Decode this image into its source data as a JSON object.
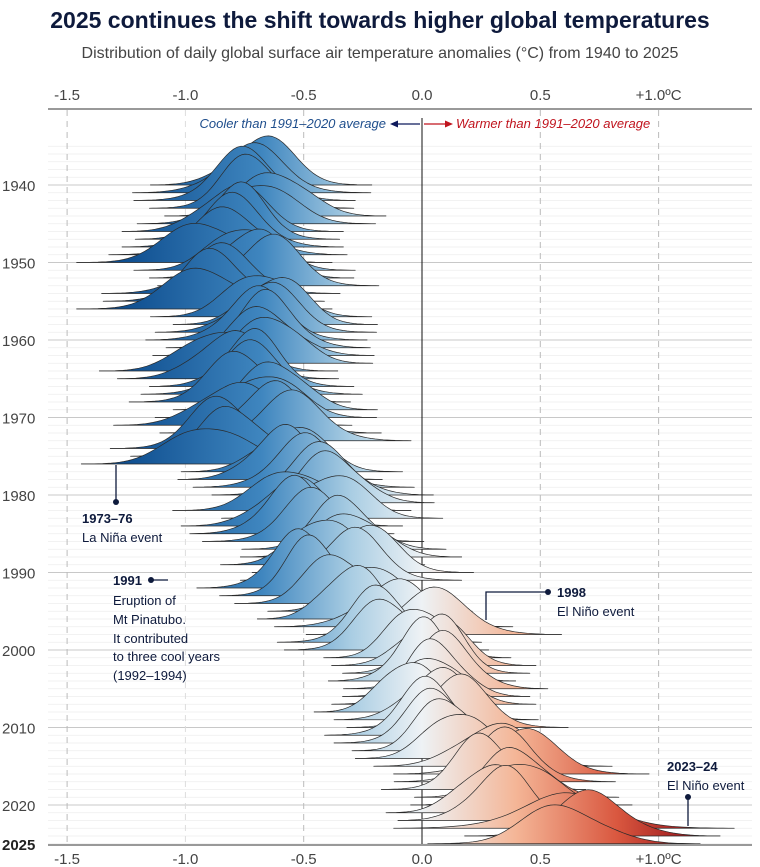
{
  "chart_data": {
    "type": "ridgeline",
    "title": "2025 continues the shift towards higher global temperatures",
    "subtitle": "Distribution of daily global surface air temperature anomalies (°C) from 1940 to 2025",
    "x_ticks": [
      "-1.5",
      "-1.0",
      "-0.5",
      "0.0",
      "0.5",
      "+1.0ºC"
    ],
    "x_tick_values": [
      -1.5,
      -1.0,
      -0.5,
      0.0,
      0.5,
      1.0
    ],
    "xlim": [
      -1.6,
      1.4
    ],
    "y_ticks": [
      "1940",
      "1950",
      "1960",
      "1970",
      "1980",
      "1990",
      "2000",
      "2010",
      "2020",
      "2025"
    ],
    "y_tick_values": [
      1940,
      1950,
      1960,
      1970,
      1980,
      1990,
      2000,
      2010,
      2020,
      2025
    ],
    "years_range": [
      1940,
      2025
    ],
    "direction_labels": {
      "cooler": "Cooler than 1991–2020 average",
      "warmer": "Warmer than 1991–2020 average"
    },
    "colors": {
      "cold": "#0b4a8c",
      "neutral": "#eef2f5",
      "warm": "#9e0b16",
      "cooler_text": "#1f4e8c",
      "warmer_text": "#c0141e"
    },
    "series": {
      "years": [
        1940,
        1941,
        1942,
        1943,
        1944,
        1945,
        1946,
        1947,
        1948,
        1949,
        1950,
        1951,
        1952,
        1953,
        1954,
        1955,
        1956,
        1957,
        1958,
        1959,
        1960,
        1961,
        1962,
        1963,
        1964,
        1965,
        1966,
        1967,
        1968,
        1969,
        1970,
        1971,
        1972,
        1973,
        1974,
        1975,
        1976,
        1977,
        1978,
        1979,
        1980,
        1981,
        1982,
        1983,
        1984,
        1985,
        1986,
        1987,
        1988,
        1989,
        1990,
        1991,
        1992,
        1993,
        1994,
        1995,
        1996,
        1997,
        1998,
        1999,
        2000,
        2001,
        2002,
        2003,
        2004,
        2005,
        2006,
        2007,
        2008,
        2009,
        2010,
        2011,
        2012,
        2013,
        2014,
        2015,
        2016,
        2017,
        2018,
        2019,
        2020,
        2021,
        2022,
        2023,
        2024,
        2025
      ],
      "mean_anomaly": [
        -0.68,
        -0.72,
        -0.75,
        -0.72,
        -0.62,
        -0.7,
        -0.8,
        -0.78,
        -0.8,
        -0.82,
        -0.92,
        -0.75,
        -0.72,
        -0.65,
        -0.85,
        -0.88,
        -0.92,
        -0.68,
        -0.62,
        -0.66,
        -0.7,
        -0.65,
        -0.67,
        -0.64,
        -0.86,
        -0.82,
        -0.72,
        -0.72,
        -0.77,
        -0.62,
        -0.66,
        -0.8,
        -0.64,
        -0.55,
        -0.85,
        -0.8,
        -0.9,
        -0.55,
        -0.6,
        -0.5,
        -0.42,
        -0.38,
        -0.55,
        -0.38,
        -0.55,
        -0.55,
        -0.46,
        -0.33,
        -0.3,
        -0.42,
        -0.25,
        -0.3,
        -0.52,
        -0.46,
        -0.36,
        -0.22,
        -0.3,
        -0.12,
        0.05,
        -0.18,
        -0.15,
        -0.02,
        0.05,
        0.06,
        0.0,
        0.1,
        0.06,
        0.05,
        -0.06,
        0.06,
        0.15,
        0.02,
        0.06,
        0.1,
        0.15,
        0.3,
        0.42,
        0.35,
        0.26,
        0.4,
        0.42,
        0.28,
        0.33,
        0.6,
        0.72,
        0.6
      ],
      "spread_sd": [
        0.13,
        0.14,
        0.13,
        0.12,
        0.13,
        0.14,
        0.13,
        0.12,
        0.13,
        0.14,
        0.15,
        0.13,
        0.12,
        0.13,
        0.14,
        0.13,
        0.15,
        0.13,
        0.12,
        0.13,
        0.13,
        0.12,
        0.13,
        0.12,
        0.14,
        0.13,
        0.12,
        0.13,
        0.13,
        0.12,
        0.13,
        0.14,
        0.13,
        0.14,
        0.13,
        0.12,
        0.15,
        0.13,
        0.12,
        0.13,
        0.13,
        0.12,
        0.14,
        0.13,
        0.13,
        0.12,
        0.13,
        0.12,
        0.13,
        0.12,
        0.13,
        0.13,
        0.12,
        0.11,
        0.12,
        0.12,
        0.11,
        0.14,
        0.15,
        0.12,
        0.12,
        0.11,
        0.12,
        0.11,
        0.11,
        0.12,
        0.11,
        0.12,
        0.11,
        0.12,
        0.13,
        0.12,
        0.12,
        0.11,
        0.12,
        0.14,
        0.15,
        0.13,
        0.12,
        0.12,
        0.13,
        0.12,
        0.12,
        0.2,
        0.15,
        0.16
      ]
    },
    "annotations": [
      {
        "title": "1973–76",
        "lines": [
          "La Niña event"
        ]
      },
      {
        "title": "1991",
        "lines": [
          "Eruption of",
          "Mt Pinatubo.",
          "It contributed",
          "to three cool years",
          "(1992–1994)"
        ]
      },
      {
        "title": "1998",
        "lines": [
          "El Niño event"
        ]
      },
      {
        "title": "2023–24",
        "lines": [
          "El Niño event"
        ]
      }
    ],
    "grid": true
  }
}
